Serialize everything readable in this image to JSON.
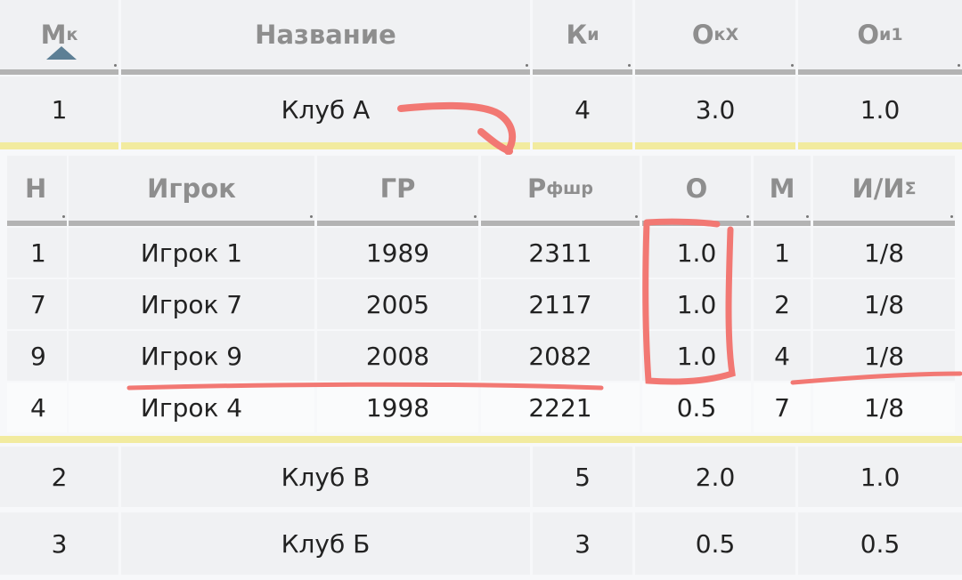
{
  "clubs_table": {
    "headers": [
      {
        "main": "М",
        "sub": "к"
      },
      {
        "main": "Название",
        "sub": ""
      },
      {
        "main": "К",
        "sub": "и"
      },
      {
        "main": "О",
        "sub": "кХ"
      },
      {
        "main": "О",
        "sub": "и1"
      }
    ],
    "sort_indicator": "ascending",
    "rows": [
      {
        "place": "1",
        "name": "Клуб А",
        "players": "4",
        "points": "3.0",
        "o1": "1.0",
        "expanded": true
      },
      {
        "place": "2",
        "name": "Клуб В",
        "players": "5",
        "points": "2.0",
        "o1": "1.0"
      },
      {
        "place": "3",
        "name": "Клуб Б",
        "players": "3",
        "points": "0.5",
        "o1": "0.5"
      }
    ]
  },
  "players_table": {
    "headers": [
      {
        "main": "Н",
        "sub": ""
      },
      {
        "main": "Игрок",
        "sub": ""
      },
      {
        "main": "ГР",
        "sub": ""
      },
      {
        "main": "Р",
        "sub": "фшр"
      },
      {
        "main": "О",
        "sub": ""
      },
      {
        "main": "М",
        "sub": ""
      },
      {
        "main": "И/И",
        "sub": "Σ"
      }
    ],
    "rows": [
      [
        "1",
        "Игрок 1",
        "1989",
        "2311",
        "1.0",
        "1",
        "1/8"
      ],
      [
        "7",
        "Игрок 7",
        "2005",
        "2117",
        "1.0",
        "2",
        "1/8"
      ],
      [
        "9",
        "Игрок 9",
        "2008",
        "2082",
        "1.0",
        "4",
        "1/8"
      ],
      [
        "4",
        "Игрок 4",
        "1998",
        "2221",
        "0.5",
        "7",
        "1/8"
      ]
    ]
  },
  "colors": {
    "annotation": "#f27873",
    "highlight": "#f2eb9f",
    "sort_arrow": "#5d7f95"
  }
}
